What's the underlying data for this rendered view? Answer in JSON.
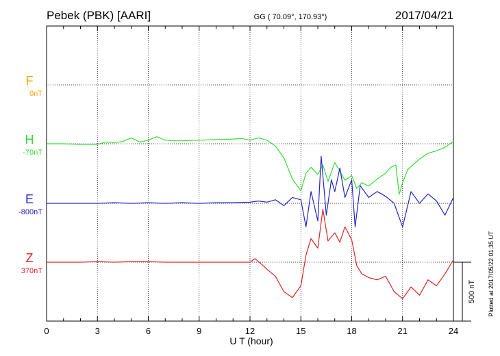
{
  "header": {
    "station": "Pebek (PBK)  [AARI]",
    "coords": "GG ( 70.09°, 170.93°)",
    "date": "2017/04/21"
  },
  "side_note": "Plotted at 2017/05/22 01:35 UT",
  "scale_label": "500 nT",
  "colors": {
    "F": "#ffa500",
    "H": "#33dd33",
    "E": "#2222cc",
    "Z": "#dd2222"
  },
  "chart_data": {
    "type": "line",
    "xlabel": "U T (hour)",
    "xlim": [
      0,
      24
    ],
    "x_ticks": [
      "0",
      "3",
      "6",
      "9",
      "12",
      "15",
      "18",
      "21",
      "24"
    ],
    "grid": true,
    "scale_bar_nT": 500,
    "series": [
      {
        "name": "F",
        "baseline_label": "0nT",
        "values": []
      },
      {
        "name": "H",
        "baseline_label": "-70nT",
        "x": [
          0,
          1,
          2,
          3,
          3.5,
          4,
          4.5,
          5,
          5.5,
          6,
          6.5,
          7,
          7.5,
          8,
          9,
          10,
          11,
          11.5,
          12,
          12.5,
          13,
          13.5,
          14,
          14.5,
          14.8,
          15,
          15.3,
          15.6,
          16,
          16.3,
          16.6,
          17,
          17.3,
          17.6,
          18,
          18.3,
          18.6,
          19,
          19.5,
          20,
          20.3,
          20.6,
          20.8,
          21,
          21.3,
          21.6,
          22,
          22.5,
          23,
          23.5,
          24
        ],
        "values": [
          0,
          0,
          -5,
          -5,
          15,
          10,
          20,
          50,
          15,
          30,
          60,
          30,
          25,
          25,
          30,
          35,
          40,
          45,
          30,
          50,
          30,
          -20,
          -120,
          -300,
          -360,
          -400,
          -250,
          -200,
          -260,
          -180,
          -320,
          -160,
          -230,
          -310,
          -270,
          -380,
          -330,
          -360,
          -300,
          -250,
          -200,
          -180,
          -430,
          -330,
          -220,
          -180,
          -130,
          -80,
          -60,
          -30,
          20
        ]
      },
      {
        "name": "E",
        "baseline_label": "-800nT",
        "x": [
          0,
          1,
          2,
          3,
          4,
          5,
          6,
          7,
          8,
          9,
          10,
          11,
          12,
          12.5,
          13,
          13.5,
          14,
          14.5,
          15,
          15.3,
          15.6,
          16,
          16.2,
          16.5,
          16.8,
          17,
          17.3,
          17.6,
          18,
          18.2,
          18.5,
          19,
          19.5,
          20,
          20.5,
          20.8,
          21,
          21.5,
          22,
          22.5,
          23,
          23.5,
          24
        ],
        "values": [
          0,
          0,
          0,
          0,
          5,
          0,
          5,
          0,
          5,
          0,
          5,
          5,
          10,
          20,
          10,
          30,
          -20,
          50,
          30,
          -200,
          100,
          -150,
          400,
          -100,
          200,
          100,
          300,
          50,
          200,
          -200,
          150,
          50,
          100,
          60,
          0,
          -120,
          -200,
          100,
          0,
          80,
          20,
          -100,
          50
        ]
      },
      {
        "name": "Z",
        "baseline_label": "370nT",
        "x": [
          0,
          1,
          2,
          3,
          4,
          5,
          6,
          7,
          8,
          9,
          10,
          11,
          12,
          12.3,
          12.7,
          13,
          13.5,
          14,
          14.5,
          15,
          15.3,
          15.6,
          16,
          16.3,
          16.6,
          17,
          17.3,
          17.6,
          18,
          18.3,
          18.6,
          19,
          19.5,
          20,
          20.5,
          21,
          21.5,
          22,
          22.5,
          23,
          23.5,
          24
        ],
        "values": [
          0,
          0,
          0,
          5,
          0,
          5,
          5,
          0,
          0,
          0,
          0,
          0,
          0,
          30,
          -20,
          -60,
          -120,
          -250,
          -300,
          -200,
          60,
          200,
          120,
          450,
          180,
          250,
          170,
          300,
          190,
          -30,
          -100,
          -130,
          -150,
          -120,
          -250,
          -310,
          -210,
          -280,
          -150,
          -200,
          -100,
          20
        ]
      }
    ]
  }
}
